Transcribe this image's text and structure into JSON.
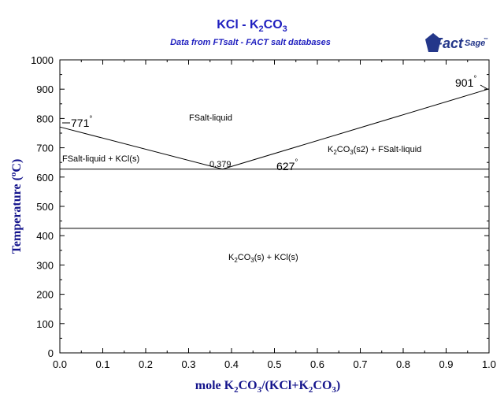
{
  "colors": {
    "title": "#1f1fbf",
    "axis_label": "#14148c",
    "line": "#000000",
    "logo": "#24378a"
  },
  "logo": {
    "text_main": "Fact",
    "text_sage": "Sage",
    "mark": "™"
  },
  "chart_data": {
    "type": "line",
    "title_prefix": "KCl - K",
    "title_sub": "2",
    "title_suffix": "CO",
    "title_sub2": "3",
    "subtitle": "Data from FTsalt - FACT salt databases",
    "xlabel": "mole K2CO3/(KCl+K2CO3)",
    "ylabel": "Temperature (°C)",
    "xlim": [
      0,
      1
    ],
    "ylim": [
      0,
      1000
    ],
    "xticks": [
      "0.0",
      "0.1",
      "0.2",
      "0.3",
      "0.4",
      "0.5",
      "0.6",
      "0.7",
      "0.8",
      "0.9",
      "1.0"
    ],
    "yticks": [
      "0",
      "100",
      "200",
      "300",
      "400",
      "500",
      "600",
      "700",
      "800",
      "900",
      "1000"
    ],
    "series": [
      {
        "name": "liquidus KCl",
        "x": [
          0,
          0.379
        ],
        "y": [
          771,
          627
        ]
      },
      {
        "name": "liquidus K2CO3",
        "x": [
          0.379,
          1.0
        ],
        "y": [
          627,
          901
        ]
      },
      {
        "name": "eutectic",
        "x": [
          0,
          1
        ],
        "y": [
          627,
          627
        ]
      },
      {
        "name": "K2CO3 transition",
        "x": [
          0,
          1
        ],
        "y": [
          425,
          425
        ]
      }
    ],
    "annotations": {
      "t771": "771",
      "t901": "901",
      "t627": "627",
      "deg": "°",
      "eutectic_x": "0.379",
      "region_liquid": "FSalt-liquid",
      "region_left": "FSalt-liquid + KCl(s)",
      "region_right": "K2CO3(s2) + FSalt-liquid",
      "region_bottom": "K2CO3(s) + KCl(s)"
    }
  }
}
